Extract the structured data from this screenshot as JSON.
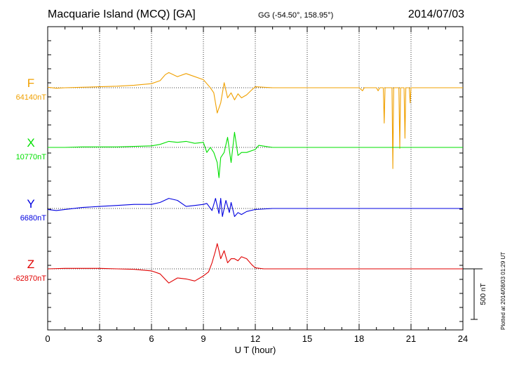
{
  "header": {
    "title": "Macquarie Island (MCQ)  [GA]",
    "coords": "GG (-54.50°, 158.95°)",
    "date": "2014/07/03",
    "plotted": "Plotted at 2014/08/03 01:29 UT"
  },
  "chart_data": {
    "type": "line",
    "title": "Macquarie Island (MCQ)  [GA]",
    "xlabel": "U T (hour)",
    "xlim": [
      0,
      24
    ],
    "x_ticks": [
      0,
      3,
      6,
      9,
      12,
      15,
      18,
      21,
      24
    ],
    "x_tick_labels": [
      "0",
      "3",
      "6",
      "9",
      "12",
      "15",
      "18",
      "21",
      "24"
    ],
    "grid": true,
    "scale_bar_label": "500 nT",
    "scale_bar_nT": 500,
    "series": [
      {
        "name": "F",
        "baseline_label": "64140nT",
        "color": "#f0a000",
        "points": [
          [
            0,
            5
          ],
          [
            0.5,
            -5
          ],
          [
            1,
            0
          ],
          [
            2,
            5
          ],
          [
            3,
            10
          ],
          [
            4,
            15
          ],
          [
            5,
            25
          ],
          [
            6,
            40
          ],
          [
            6.5,
            70
          ],
          [
            6.8,
            130
          ],
          [
            7,
            150
          ],
          [
            7.5,
            110
          ],
          [
            8,
            140
          ],
          [
            8.5,
            110
          ],
          [
            9,
            80
          ],
          [
            9.2,
            40
          ],
          [
            9.4,
            0
          ],
          [
            9.6,
            -50
          ],
          [
            9.8,
            -250
          ],
          [
            9.9,
            -200
          ],
          [
            10,
            -150
          ],
          [
            10.2,
            50
          ],
          [
            10.4,
            -100
          ],
          [
            10.6,
            -50
          ],
          [
            10.8,
            -120
          ],
          [
            11,
            -60
          ],
          [
            11.2,
            -100
          ],
          [
            11.5,
            -70
          ],
          [
            11.8,
            -20
          ],
          [
            12,
            10
          ],
          [
            13,
            0
          ],
          [
            14,
            0
          ],
          [
            15,
            0
          ],
          [
            16,
            0
          ],
          [
            17,
            0
          ],
          [
            18,
            0
          ],
          [
            18.2,
            -30
          ],
          [
            18.3,
            0
          ],
          [
            19,
            0
          ],
          [
            19.1,
            -30
          ],
          [
            19.2,
            0
          ],
          [
            19.4,
            0
          ],
          [
            19.45,
            -350
          ],
          [
            19.5,
            0
          ],
          [
            19.9,
            0
          ],
          [
            19.95,
            -800
          ],
          [
            20,
            0
          ],
          [
            20.3,
            0
          ],
          [
            20.35,
            -600
          ],
          [
            20.4,
            0
          ],
          [
            20.6,
            0
          ],
          [
            20.65,
            -500
          ],
          [
            20.7,
            0
          ],
          [
            20.9,
            0
          ],
          [
            20.95,
            -150
          ],
          [
            21,
            0
          ],
          [
            24,
            0
          ]
        ]
      },
      {
        "name": "X",
        "baseline_label": "10770nT",
        "color": "#00e000",
        "points": [
          [
            0,
            0
          ],
          [
            1,
            0
          ],
          [
            2,
            5
          ],
          [
            3,
            5
          ],
          [
            4,
            5
          ],
          [
            5,
            10
          ],
          [
            6,
            15
          ],
          [
            6.5,
            30
          ],
          [
            7,
            60
          ],
          [
            7.5,
            50
          ],
          [
            8,
            60
          ],
          [
            8.5,
            40
          ],
          [
            9,
            50
          ],
          [
            9.2,
            -50
          ],
          [
            9.4,
            0
          ],
          [
            9.6,
            -50
          ],
          [
            9.8,
            -150
          ],
          [
            9.9,
            -300
          ],
          [
            10,
            -100
          ],
          [
            10.2,
            -50
          ],
          [
            10.4,
            100
          ],
          [
            10.6,
            -150
          ],
          [
            10.8,
            150
          ],
          [
            11,
            -80
          ],
          [
            11.2,
            -50
          ],
          [
            11.5,
            -50
          ],
          [
            12,
            -20
          ],
          [
            12.2,
            20
          ],
          [
            13,
            0
          ],
          [
            18,
            0
          ],
          [
            24,
            0
          ]
        ]
      },
      {
        "name": "Y",
        "baseline_label": "6680nT",
        "color": "#0000e0",
        "points": [
          [
            0,
            -10
          ],
          [
            0.5,
            -20
          ],
          [
            1,
            -10
          ],
          [
            2,
            10
          ],
          [
            3,
            20
          ],
          [
            4,
            30
          ],
          [
            5,
            40
          ],
          [
            6,
            40
          ],
          [
            6.5,
            60
          ],
          [
            7,
            100
          ],
          [
            7.5,
            80
          ],
          [
            8,
            20
          ],
          [
            8.5,
            30
          ],
          [
            9,
            40
          ],
          [
            9.2,
            50
          ],
          [
            9.5,
            -20
          ],
          [
            9.7,
            100
          ],
          [
            9.9,
            -50
          ],
          [
            10,
            100
          ],
          [
            10.1,
            -80
          ],
          [
            10.3,
            80
          ],
          [
            10.5,
            -40
          ],
          [
            10.6,
            60
          ],
          [
            10.8,
            -80
          ],
          [
            11,
            -40
          ],
          [
            11.2,
            -60
          ],
          [
            11.5,
            -30
          ],
          [
            12,
            -10
          ],
          [
            13,
            0
          ],
          [
            14,
            0
          ],
          [
            15,
            0
          ],
          [
            18,
            0
          ],
          [
            21,
            0
          ],
          [
            24,
            0
          ]
        ]
      },
      {
        "name": "Z",
        "baseline_label": "-62870nT",
        "color": "#e00000",
        "points": [
          [
            0,
            0
          ],
          [
            1,
            5
          ],
          [
            2,
            5
          ],
          [
            3,
            5
          ],
          [
            4,
            0
          ],
          [
            5,
            -5
          ],
          [
            6,
            -20
          ],
          [
            6.5,
            -50
          ],
          [
            7,
            -140
          ],
          [
            7.5,
            -90
          ],
          [
            8,
            -100
          ],
          [
            8.5,
            -120
          ],
          [
            9,
            -70
          ],
          [
            9.3,
            -30
          ],
          [
            9.5,
            60
          ],
          [
            9.7,
            180
          ],
          [
            9.8,
            250
          ],
          [
            9.9,
            180
          ],
          [
            10,
            100
          ],
          [
            10.2,
            180
          ],
          [
            10.4,
            60
          ],
          [
            10.6,
            100
          ],
          [
            10.8,
            100
          ],
          [
            11,
            80
          ],
          [
            11.2,
            120
          ],
          [
            11.5,
            100
          ],
          [
            11.8,
            40
          ],
          [
            12,
            10
          ],
          [
            12.5,
            0
          ],
          [
            13,
            0
          ],
          [
            15,
            0
          ],
          [
            18,
            0
          ],
          [
            24,
            0
          ]
        ]
      }
    ]
  }
}
